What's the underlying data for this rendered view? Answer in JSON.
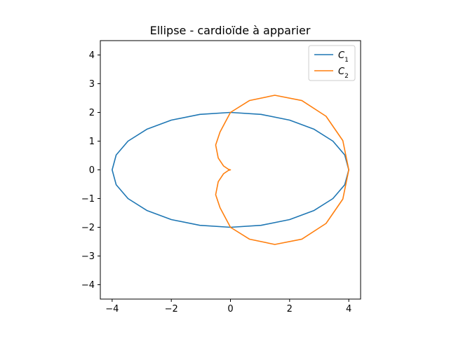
{
  "chart_data": {
    "type": "line",
    "title": "Ellipse - cardioïde à apparier",
    "xlabel": "",
    "ylabel": "",
    "xlim": [
      -4.4,
      4.4
    ],
    "ylim": [
      -4.5,
      4.5
    ],
    "grid": false,
    "legend_position": "top-right",
    "x_ticks": [
      -4,
      -2,
      0,
      2,
      4
    ],
    "x_tick_labels": [
      "−4",
      "−2",
      "0",
      "2",
      "4"
    ],
    "y_ticks": [
      -4,
      -3,
      -2,
      -1,
      0,
      1,
      2,
      3,
      4
    ],
    "y_tick_labels": [
      "−4",
      "−3",
      "−2",
      "−1",
      "0",
      "1",
      "2",
      "3",
      "4"
    ],
    "series": [
      {
        "name": "C",
        "subscript": "1",
        "color": "#1f77b4",
        "description": "ellipse x^2/16 + y^2/4 = 1",
        "x": [
          4.0,
          3.864,
          3.464,
          2.828,
          2.0,
          1.035,
          0.0,
          -1.035,
          -2.0,
          -2.828,
          -3.464,
          -3.864,
          -4.0,
          -3.864,
          -3.464,
          -2.828,
          -2.0,
          -1.035,
          0.0,
          1.035,
          2.0,
          2.828,
          3.464,
          3.864,
          4.0
        ],
        "y": [
          0.0,
          0.518,
          1.0,
          1.414,
          1.732,
          1.932,
          2.0,
          1.932,
          1.732,
          1.414,
          1.0,
          0.518,
          0.0,
          -0.518,
          -1.0,
          -1.414,
          -1.732,
          -1.932,
          -2.0,
          -1.932,
          -1.732,
          -1.414,
          -1.0,
          -0.518,
          0.0
        ]
      },
      {
        "name": "C",
        "subscript": "2",
        "color": "#ff7f0e",
        "description": "cardioid r = 2(1 + cos t)",
        "x": [
          4.0,
          3.799,
          3.232,
          2.414,
          1.5,
          0.647,
          0.0,
          -0.353,
          -0.5,
          -0.414,
          -0.232,
          -0.067,
          0.0,
          -0.067,
          -0.232,
          -0.414,
          -0.5,
          -0.353,
          0.0,
          0.647,
          1.5,
          2.414,
          3.232,
          3.799,
          4.0
        ],
        "y": [
          0.0,
          1.018,
          1.866,
          2.414,
          2.598,
          2.415,
          2.0,
          1.318,
          0.866,
          0.414,
          0.134,
          0.018,
          0.0,
          -0.018,
          -0.134,
          -0.414,
          -0.866,
          -1.318,
          -2.0,
          -2.415,
          -2.598,
          -2.414,
          -1.866,
          -1.018,
          0.0
        ]
      }
    ]
  }
}
